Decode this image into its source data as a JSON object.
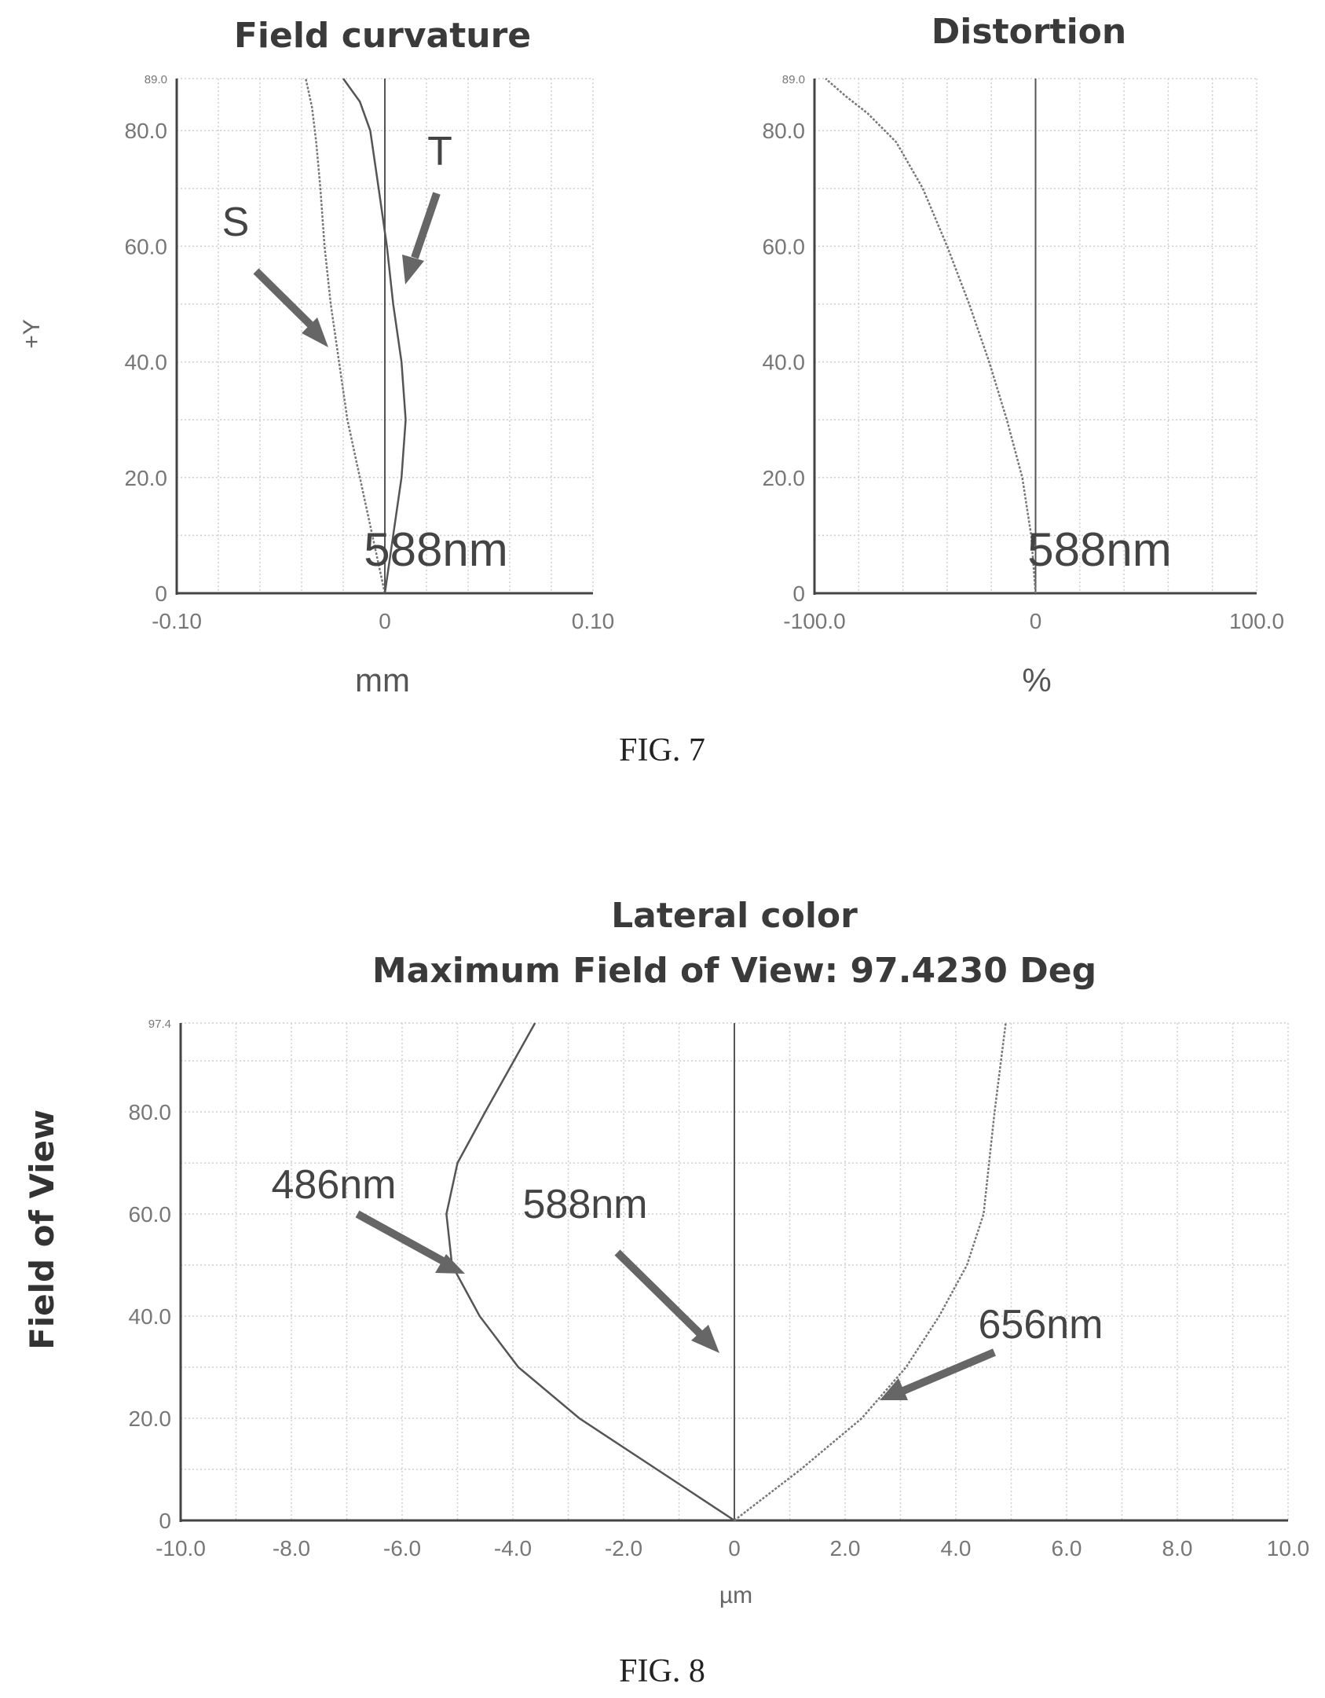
{
  "chart_data": [
    {
      "type": "line",
      "title": "Field curvature",
      "xlabel": "mm",
      "ylabel": "+Y",
      "xlim": [
        -0.1,
        0.1
      ],
      "ylim": [
        0,
        89.0
      ],
      "x_ticks": [
        "-0.10",
        "0",
        "0.10"
      ],
      "y_ticks": [
        "0",
        "20.0",
        "40.0",
        "60.0",
        "80.0"
      ],
      "y_top_label": "89.0",
      "wavelength": "588nm",
      "grid": true,
      "series": [
        {
          "name": "S",
          "x": [
            0.0,
            -0.006,
            -0.012,
            -0.018,
            -0.022,
            -0.026,
            -0.029,
            -0.031,
            -0.033,
            -0.035,
            -0.038
          ],
          "y": [
            0,
            10,
            20,
            30,
            40,
            50,
            60,
            70,
            78,
            84,
            89
          ]
        },
        {
          "name": "T",
          "x": [
            0.0,
            0.004,
            0.008,
            0.01,
            0.008,
            0.004,
            0.001,
            -0.003,
            -0.007,
            -0.012,
            -0.02
          ],
          "y": [
            0,
            10,
            20,
            30,
            40,
            50,
            60,
            70,
            80,
            85,
            89
          ]
        }
      ],
      "annotations": [
        "S",
        "T"
      ]
    },
    {
      "type": "line",
      "title": "Distortion",
      "xlabel": "%",
      "xlim": [
        -100,
        100
      ],
      "ylim": [
        0,
        89.0
      ],
      "x_ticks": [
        "-100.0",
        "0",
        "100.0"
      ],
      "y_ticks": [
        "0",
        "20.0",
        "40.0",
        "60.0",
        "80.0"
      ],
      "y_top_label": "89.0",
      "wavelength": "588nm",
      "grid": true,
      "series": [
        {
          "name": "",
          "x": [
            0,
            -2,
            -6,
            -13,
            -21,
            -30,
            -40,
            -51,
            -63,
            -76,
            -86,
            -95
          ],
          "y": [
            0,
            10,
            20,
            30,
            40,
            50,
            60,
            70,
            78,
            83,
            86,
            89
          ]
        }
      ]
    },
    {
      "type": "line",
      "title": "Lateral color",
      "subtitle": "Maximum Field of View: 97.4230 Deg",
      "xlabel": "µm",
      "ylabel": "Field of View",
      "xlim": [
        -10,
        10
      ],
      "ylim": [
        0,
        97.4
      ],
      "x_ticks": [
        "-10.0",
        "-8.0",
        "-6.0",
        "-4.0",
        "-2.0",
        "0",
        "2.0",
        "4.0",
        "6.0",
        "8.0",
        "10.0"
      ],
      "y_ticks": [
        "0",
        "20.0",
        "40.0",
        "60.0",
        "80.0"
      ],
      "y_top_label": "97.4",
      "grid": true,
      "series": [
        {
          "name": "486nm",
          "x": [
            0,
            -1.4,
            -2.8,
            -3.9,
            -4.6,
            -5.1,
            -5.2,
            -5.0,
            -4.5,
            -3.6
          ],
          "y": [
            0,
            10,
            20,
            30,
            40,
            50,
            60,
            70,
            80,
            97.4
          ]
        },
        {
          "name": "588nm",
          "x": [
            0,
            0
          ],
          "y": [
            0,
            97.4
          ]
        },
        {
          "name": "656nm",
          "x": [
            0,
            1.2,
            2.3,
            3.1,
            3.7,
            4.2,
            4.5,
            4.6,
            4.7,
            4.9
          ],
          "y": [
            0,
            10,
            20,
            30,
            40,
            50,
            60,
            70,
            80,
            97.4
          ]
        }
      ],
      "annotations": [
        "486nm",
        "588nm",
        "656nm"
      ]
    }
  ],
  "figure_labels": [
    "FIG. 7",
    "FIG. 8"
  ]
}
